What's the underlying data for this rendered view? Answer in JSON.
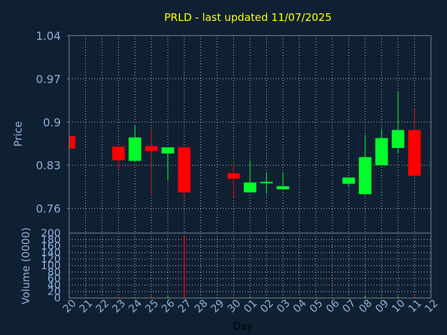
{
  "chart_data": [
    {
      "type": "candlestick",
      "title": "PRLD - last updated 11/07/2025",
      "ylabel": "Price",
      "xlabel": "",
      "ylim": [
        0.72,
        1.04
      ],
      "y_ticks": [
        "1.04",
        "0.97",
        "0.9",
        "0.83",
        "0.76"
      ],
      "y_tick_values": [
        1.04,
        0.97,
        0.9,
        0.83,
        0.76
      ],
      "grid": true,
      "colors": {
        "up": "#00ff2a",
        "down": "#ff0000",
        "title": "#ffff00",
        "axis_text": "#8fb0d8",
        "background": "#0f2033"
      },
      "candles": [
        {
          "day": "20",
          "open": 0.877,
          "high": 0.877,
          "low": 0.857,
          "close": 0.857
        },
        {
          "day": "23",
          "open": 0.86,
          "high": 0.86,
          "low": 0.822,
          "close": 0.838
        },
        {
          "day": "24",
          "open": 0.837,
          "high": 0.894,
          "low": 0.837,
          "close": 0.875
        },
        {
          "day": "25",
          "open": 0.861,
          "high": 0.887,
          "low": 0.784,
          "close": 0.853
        },
        {
          "day": "26",
          "open": 0.849,
          "high": 0.858,
          "low": 0.806,
          "close": 0.859
        },
        {
          "day": "27",
          "open": 0.859,
          "high": 0.859,
          "low": 0.773,
          "close": 0.786
        },
        {
          "day": "30",
          "open": 0.817,
          "high": 0.833,
          "low": 0.777,
          "close": 0.808
        },
        {
          "day": "01",
          "open": 0.786,
          "high": 0.838,
          "low": 0.786,
          "close": 0.802
        },
        {
          "day": "02",
          "open": 0.801,
          "high": 0.818,
          "low": 0.784,
          "close": 0.803
        },
        {
          "day": "03",
          "open": 0.791,
          "high": 0.818,
          "low": 0.791,
          "close": 0.796
        },
        {
          "day": "07",
          "open": 0.8,
          "high": 0.811,
          "low": 0.796,
          "close": 0.81
        },
        {
          "day": "08",
          "open": 0.783,
          "high": 0.879,
          "low": 0.783,
          "close": 0.843
        },
        {
          "day": "09",
          "open": 0.83,
          "high": 0.888,
          "low": 0.83,
          "close": 0.874
        },
        {
          "day": "10",
          "open": 0.858,
          "high": 0.95,
          "low": 0.849,
          "close": 0.887
        },
        {
          "day": "11",
          "open": 0.887,
          "high": 0.922,
          "low": 0.811,
          "close": 0.813
        }
      ]
    },
    {
      "type": "bar",
      "ylabel": "Volume (0000)",
      "xlabel": "Day",
      "ylim": [
        0,
        200
      ],
      "y_ticks": [
        "200",
        "180",
        "160",
        "140",
        "120",
        "100",
        "80",
        "60",
        "40",
        "20",
        "0"
      ],
      "y_tick_values": [
        200,
        180,
        160,
        140,
        120,
        100,
        80,
        60,
        40,
        20,
        0
      ],
      "categories": [
        "20",
        "21",
        "22",
        "23",
        "24",
        "25",
        "26",
        "27",
        "28",
        "29",
        "30",
        "01",
        "02",
        "03",
        "04",
        "05",
        "06",
        "07",
        "08",
        "09",
        "10",
        "11",
        "12"
      ],
      "volumes": [
        {
          "day": "20",
          "value": 2,
          "dir": "down"
        },
        {
          "day": "23",
          "value": 4,
          "dir": "down"
        },
        {
          "day": "24",
          "value": 3,
          "dir": "up"
        },
        {
          "day": "25",
          "value": 7,
          "dir": "down"
        },
        {
          "day": "26",
          "value": 5,
          "dir": "up"
        },
        {
          "day": "27",
          "value": 190,
          "dir": "down"
        },
        {
          "day": "30",
          "value": 3,
          "dir": "down"
        },
        {
          "day": "01",
          "value": 4,
          "dir": "up"
        },
        {
          "day": "02",
          "value": 2,
          "dir": "up"
        },
        {
          "day": "03",
          "value": 2,
          "dir": "up"
        },
        {
          "day": "07",
          "value": 2,
          "dir": "up"
        },
        {
          "day": "08",
          "value": 6,
          "dir": "up"
        },
        {
          "day": "09",
          "value": 3,
          "dir": "up"
        },
        {
          "day": "10",
          "value": 4,
          "dir": "up"
        },
        {
          "day": "11",
          "value": 5,
          "dir": "down"
        }
      ]
    }
  ]
}
